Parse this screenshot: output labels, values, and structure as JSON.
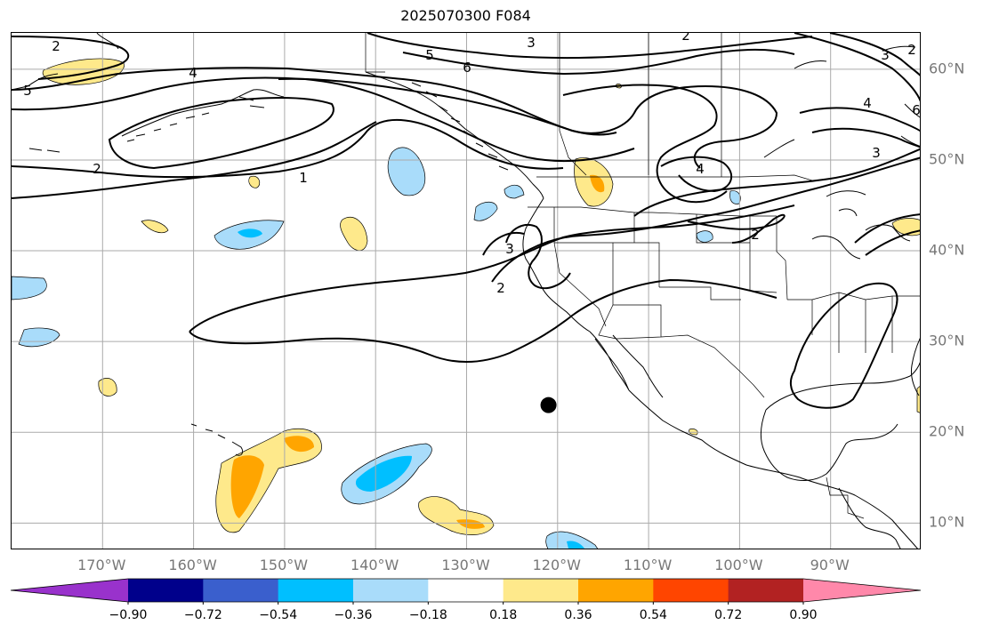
{
  "title": "2025070300 F084",
  "map": {
    "projection": "Plate Carree",
    "lon_range": [
      -180,
      -80
    ],
    "lat_range": [
      7,
      64
    ],
    "grid": true,
    "lon_labels": [
      "170°W",
      "160°W",
      "150°W",
      "140°W",
      "130°W",
      "120°W",
      "110°W",
      "100°W",
      "90°W"
    ],
    "lat_labels": [
      "60°N",
      "50°N",
      "40°N",
      "30°N",
      "20°N",
      "10°N"
    ],
    "contour_labels": [
      "2",
      "4",
      "3",
      "5",
      "6",
      "2",
      "3",
      "4",
      "6",
      "2",
      "1",
      "3",
      "2",
      "4",
      "3",
      "2",
      "5",
      "2"
    ],
    "marker": {
      "name": "location marker",
      "lon": -121,
      "lat": 23
    },
    "colors": {
      "land_outline": "#000000",
      "grid": "#aaaaaa",
      "light_yellow": "#fee98b",
      "orange": "#ffa500",
      "light_blue": "#a9dcfa",
      "cyan": "#00bfff"
    }
  },
  "colorbar": {
    "ticks": [
      "−0.90",
      "−0.72",
      "−0.54",
      "−0.36",
      "−0.18",
      "0.18",
      "0.36",
      "0.54",
      "0.72",
      "0.90"
    ],
    "colors": [
      "#9932cc",
      "#00008b",
      "#3a5fcd",
      "#00bfff",
      "#a9dcfa",
      "#ffffff",
      "#fee98b",
      "#ffa500",
      "#ff4500",
      "#b22222",
      "#ff88aa"
    ],
    "extend": "both"
  }
}
